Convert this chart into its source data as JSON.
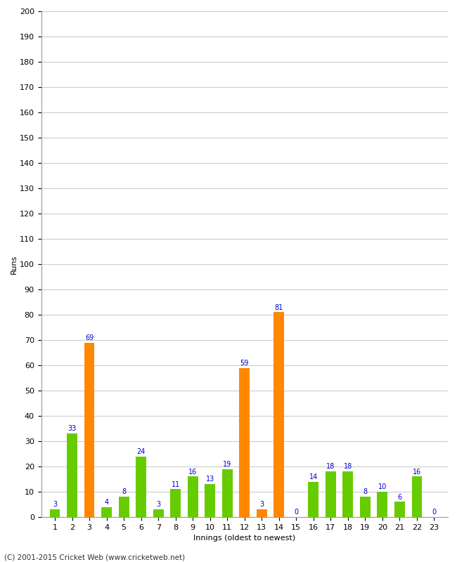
{
  "xlabel": "Innings (oldest to newest)",
  "ylabel": "Runs",
  "footer": "(C) 2001-2015 Cricket Web (www.cricketweb.net)",
  "values": [
    3,
    33,
    69,
    4,
    8,
    24,
    3,
    11,
    16,
    13,
    19,
    59,
    3,
    81,
    0,
    14,
    18,
    18,
    8,
    10,
    6,
    16,
    0
  ],
  "innings": [
    1,
    2,
    3,
    4,
    5,
    6,
    7,
    8,
    9,
    10,
    11,
    12,
    13,
    14,
    15,
    16,
    17,
    18,
    19,
    20,
    21,
    22,
    23
  ],
  "bar_colors": [
    "#66cc00",
    "#66cc00",
    "#ff8800",
    "#66cc00",
    "#66cc00",
    "#66cc00",
    "#66cc00",
    "#66cc00",
    "#66cc00",
    "#66cc00",
    "#66cc00",
    "#ff8800",
    "#ff8800",
    "#ff8800",
    "#66cc00",
    "#66cc00",
    "#66cc00",
    "#66cc00",
    "#66cc00",
    "#66cc00",
    "#66cc00",
    "#66cc00",
    "#66cc00"
  ],
  "label_color": "#0000cc",
  "ylim": [
    0,
    200
  ],
  "yticks": [
    0,
    10,
    20,
    30,
    40,
    50,
    60,
    70,
    80,
    90,
    100,
    110,
    120,
    130,
    140,
    150,
    160,
    170,
    180,
    190,
    200
  ],
  "background_color": "#ffffff",
  "grid_color": "#cccccc",
  "axis_label_fontsize": 8,
  "tick_fontsize": 8,
  "value_label_fontsize": 7,
  "bar_width": 0.6
}
